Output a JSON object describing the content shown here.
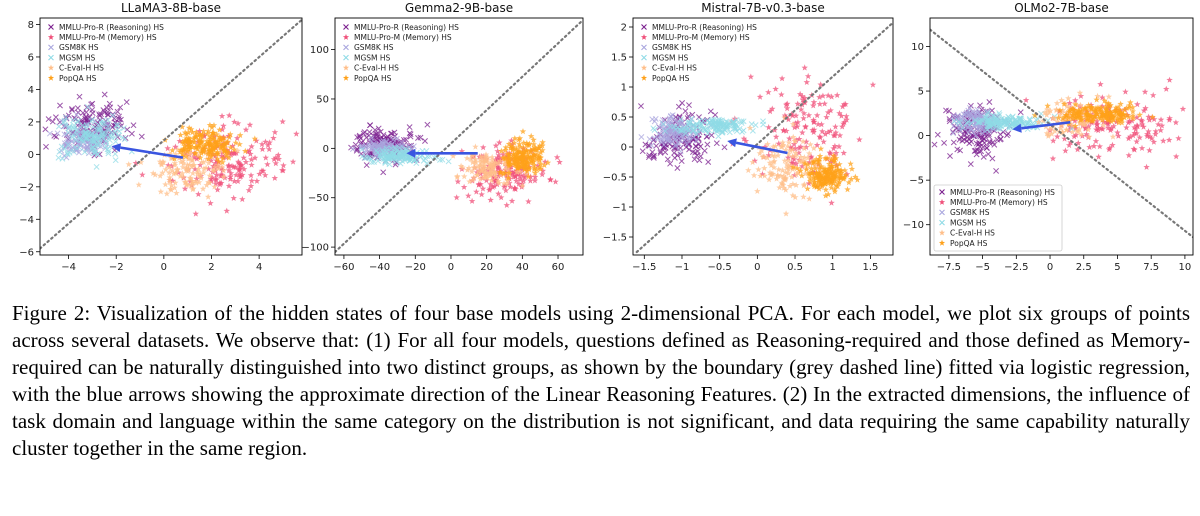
{
  "caption": "Figure 2: Visualization of the hidden states of four base models using 2-dimensional PCA. For each model, we plot six groups of points across several datasets.  We observe that: (1) For all four models, questions defined as Reasoning-required and those defined as Memory-required can be naturally distinguished into two distinct groups, as shown by the boundary (grey dashed line) fitted via logistic regression, with the blue arrows showing the approximate direction of the Linear Reasoning Features. (2) In the extracted dimensions, the influence of task domain and language within the same category on the distribution is not significant, and data requiring the same capability naturally cluster together in the same region.",
  "colors": {
    "MMLU-Pro-R (Reasoning) HS": "#7b1f8f",
    "MMLU-Pro-M (Memory) HS": "#f0507a",
    "GSM8K HS": "#a9a6de",
    "MGSM HS": "#8fdbe6",
    "C-Eval-H HS": "#ffbf8a",
    "PopQA HS": "#ffa11a",
    "arrow": "#3a55e0",
    "boundary": "#777777"
  },
  "chart_data": [
    {
      "type": "scatter",
      "title": "LLaMA3-8B-base",
      "xlabel": "",
      "ylabel": "",
      "xlim": [
        -5.2,
        5.8
      ],
      "ylim": [
        -6.2,
        8.4
      ],
      "xticks": [
        -4,
        -2,
        0,
        2,
        4
      ],
      "yticks": [
        -6,
        -4,
        -2,
        0,
        2,
        4,
        6,
        8
      ],
      "grid": false,
      "legend_position": "top-left",
      "series": [
        {
          "name": "MMLU-Pro-R (Reasoning) HS",
          "marker": "x",
          "center": [
            -3.0,
            1.8
          ],
          "spread": [
            1.0,
            1.0
          ],
          "count": 150
        },
        {
          "name": "MMLU-Pro-M (Memory) HS",
          "marker": "*",
          "center": [
            2.5,
            -0.5
          ],
          "spread": [
            1.6,
            1.5
          ],
          "count": 170
        },
        {
          "name": "GSM8K HS",
          "marker": "x",
          "center": [
            -3.3,
            0.9
          ],
          "spread": [
            0.7,
            0.7
          ],
          "count": 110
        },
        {
          "name": "MGSM HS",
          "marker": "x",
          "center": [
            -3.0,
            1.0
          ],
          "spread": [
            0.9,
            0.8
          ],
          "count": 130
        },
        {
          "name": "C-Eval-H HS",
          "marker": "*",
          "center": [
            1.0,
            -0.9
          ],
          "spread": [
            1.0,
            1.0
          ],
          "count": 130
        },
        {
          "name": "PopQA HS",
          "marker": "*",
          "center": [
            1.8,
            0.6
          ],
          "spread": [
            0.8,
            0.6
          ],
          "count": 170
        }
      ],
      "boundary": [
        [
          -5.2,
          -5.8
        ],
        [
          5.8,
          8.3
        ]
      ],
      "arrow": {
        "from": [
          0.8,
          -0.2
        ],
        "to": [
          -2.2,
          0.5
        ]
      }
    },
    {
      "type": "scatter",
      "title": "Gemma2-9B-base",
      "xlabel": "",
      "ylabel": "",
      "xlim": [
        -65,
        74
      ],
      "ylim": [
        -108,
        132
      ],
      "xticks": [
        -60,
        -40,
        -20,
        0,
        20,
        40,
        60
      ],
      "yticks": [
        -100,
        -50,
        0,
        50,
        100
      ],
      "grid": false,
      "legend_position": "top-left",
      "series": [
        {
          "name": "MMLU-Pro-R (Reasoning) HS",
          "marker": "x",
          "center": [
            -38,
            5
          ],
          "spread": [
            12,
            12
          ],
          "count": 140
        },
        {
          "name": "MMLU-Pro-M (Memory) HS",
          "marker": "*",
          "center": [
            30,
            -25
          ],
          "spread": [
            14,
            18
          ],
          "count": 150
        },
        {
          "name": "GSM8K HS",
          "marker": "x",
          "center": [
            -38,
            0
          ],
          "spread": [
            9,
            5
          ],
          "count": 120
        },
        {
          "name": "MGSM HS",
          "marker": "x",
          "center": [
            -28,
            -8
          ],
          "spread": [
            12,
            5
          ],
          "count": 140
        },
        {
          "name": "C-Eval-H HS",
          "marker": "*",
          "center": [
            22,
            -20
          ],
          "spread": [
            12,
            12
          ],
          "count": 120
        },
        {
          "name": "PopQA HS",
          "marker": "*",
          "center": [
            40,
            -10
          ],
          "spread": [
            8,
            12
          ],
          "count": 170
        }
      ],
      "boundary": [
        [
          -65,
          -105
        ],
        [
          74,
          130
        ]
      ],
      "arrow": {
        "from": [
          15,
          -5
        ],
        "to": [
          -25,
          -5
        ]
      }
    },
    {
      "type": "scatter",
      "title": "Mistral-7B-v0.3-base",
      "xlabel": "",
      "ylabel": "",
      "xlim": [
        -1.65,
        1.8
      ],
      "ylim": [
        -1.8,
        2.15
      ],
      "xticks": [
        -1.5,
        -1.0,
        -0.5,
        0.0,
        0.5,
        1.0,
        1.5
      ],
      "yticks": [
        -1.5,
        -1.0,
        -0.5,
        0.0,
        0.5,
        1.0,
        1.5,
        2.0
      ],
      "grid": false,
      "legend_position": "top-left",
      "series": [
        {
          "name": "MMLU-Pro-R (Reasoning) HS",
          "marker": "x",
          "center": [
            -1.0,
            0.15
          ],
          "spread": [
            0.3,
            0.3
          ],
          "count": 140
        },
        {
          "name": "MMLU-Pro-M (Memory) HS",
          "marker": "*",
          "center": [
            0.7,
            0.3
          ],
          "spread": [
            0.45,
            0.6
          ],
          "count": 150
        },
        {
          "name": "GSM8K HS",
          "marker": "x",
          "center": [
            -1.1,
            0.25
          ],
          "spread": [
            0.2,
            0.15
          ],
          "count": 120
        },
        {
          "name": "MGSM HS",
          "marker": "x",
          "center": [
            -0.6,
            0.35
          ],
          "spread": [
            0.4,
            0.08
          ],
          "count": 140
        },
        {
          "name": "C-Eval-H HS",
          "marker": "*",
          "center": [
            0.4,
            -0.3
          ],
          "spread": [
            0.3,
            0.4
          ],
          "count": 120
        },
        {
          "name": "PopQA HS",
          "marker": "*",
          "center": [
            0.9,
            -0.45
          ],
          "spread": [
            0.2,
            0.2
          ],
          "count": 170
        }
      ],
      "boundary": [
        [
          -1.6,
          -1.75
        ],
        [
          1.78,
          2.05
        ]
      ],
      "arrow": {
        "from": [
          0.4,
          -0.1
        ],
        "to": [
          -0.4,
          0.1
        ]
      }
    },
    {
      "type": "scatter",
      "title": "OLMo2-7B-base",
      "xlabel": "",
      "ylabel": "",
      "xlim": [
        -8.9,
        10.6
      ],
      "ylim": [
        -13.4,
        13.2
      ],
      "xticks": [
        -7.5,
        -5.0,
        -2.5,
        0.0,
        2.5,
        5.0,
        7.5,
        10.0
      ],
      "yticks": [
        -10,
        -5,
        0,
        5,
        10
      ],
      "grid": false,
      "legend_position": "lower-left",
      "series": [
        {
          "name": "MMLU-Pro-R (Reasoning) HS",
          "marker": "x",
          "center": [
            -5.5,
            0.5
          ],
          "spread": [
            1.5,
            2.0
          ],
          "count": 150
        },
        {
          "name": "MMLU-Pro-M (Memory) HS",
          "marker": "*",
          "center": [
            4.5,
            1.0
          ],
          "spread": [
            3.0,
            2.5
          ],
          "count": 150
        },
        {
          "name": "GSM8K HS",
          "marker": "x",
          "center": [
            -5.5,
            1.5
          ],
          "spread": [
            1.0,
            1.0
          ],
          "count": 120
        },
        {
          "name": "MGSM HS",
          "marker": "x",
          "center": [
            -3.5,
            1.5
          ],
          "spread": [
            1.8,
            0.6
          ],
          "count": 140
        },
        {
          "name": "C-Eval-H HS",
          "marker": "*",
          "center": [
            1.5,
            2.0
          ],
          "spread": [
            1.5,
            1.5
          ],
          "count": 110
        },
        {
          "name": "PopQA HS",
          "marker": "*",
          "center": [
            3.5,
            2.5
          ],
          "spread": [
            2.2,
            0.7
          ],
          "count": 170
        }
      ],
      "boundary": [
        [
          -8.9,
          11.9
        ],
        [
          10.6,
          -11.4
        ]
      ],
      "arrow": {
        "from": [
          1.5,
          1.5
        ],
        "to": [
          -2.8,
          0.7
        ]
      }
    }
  ]
}
